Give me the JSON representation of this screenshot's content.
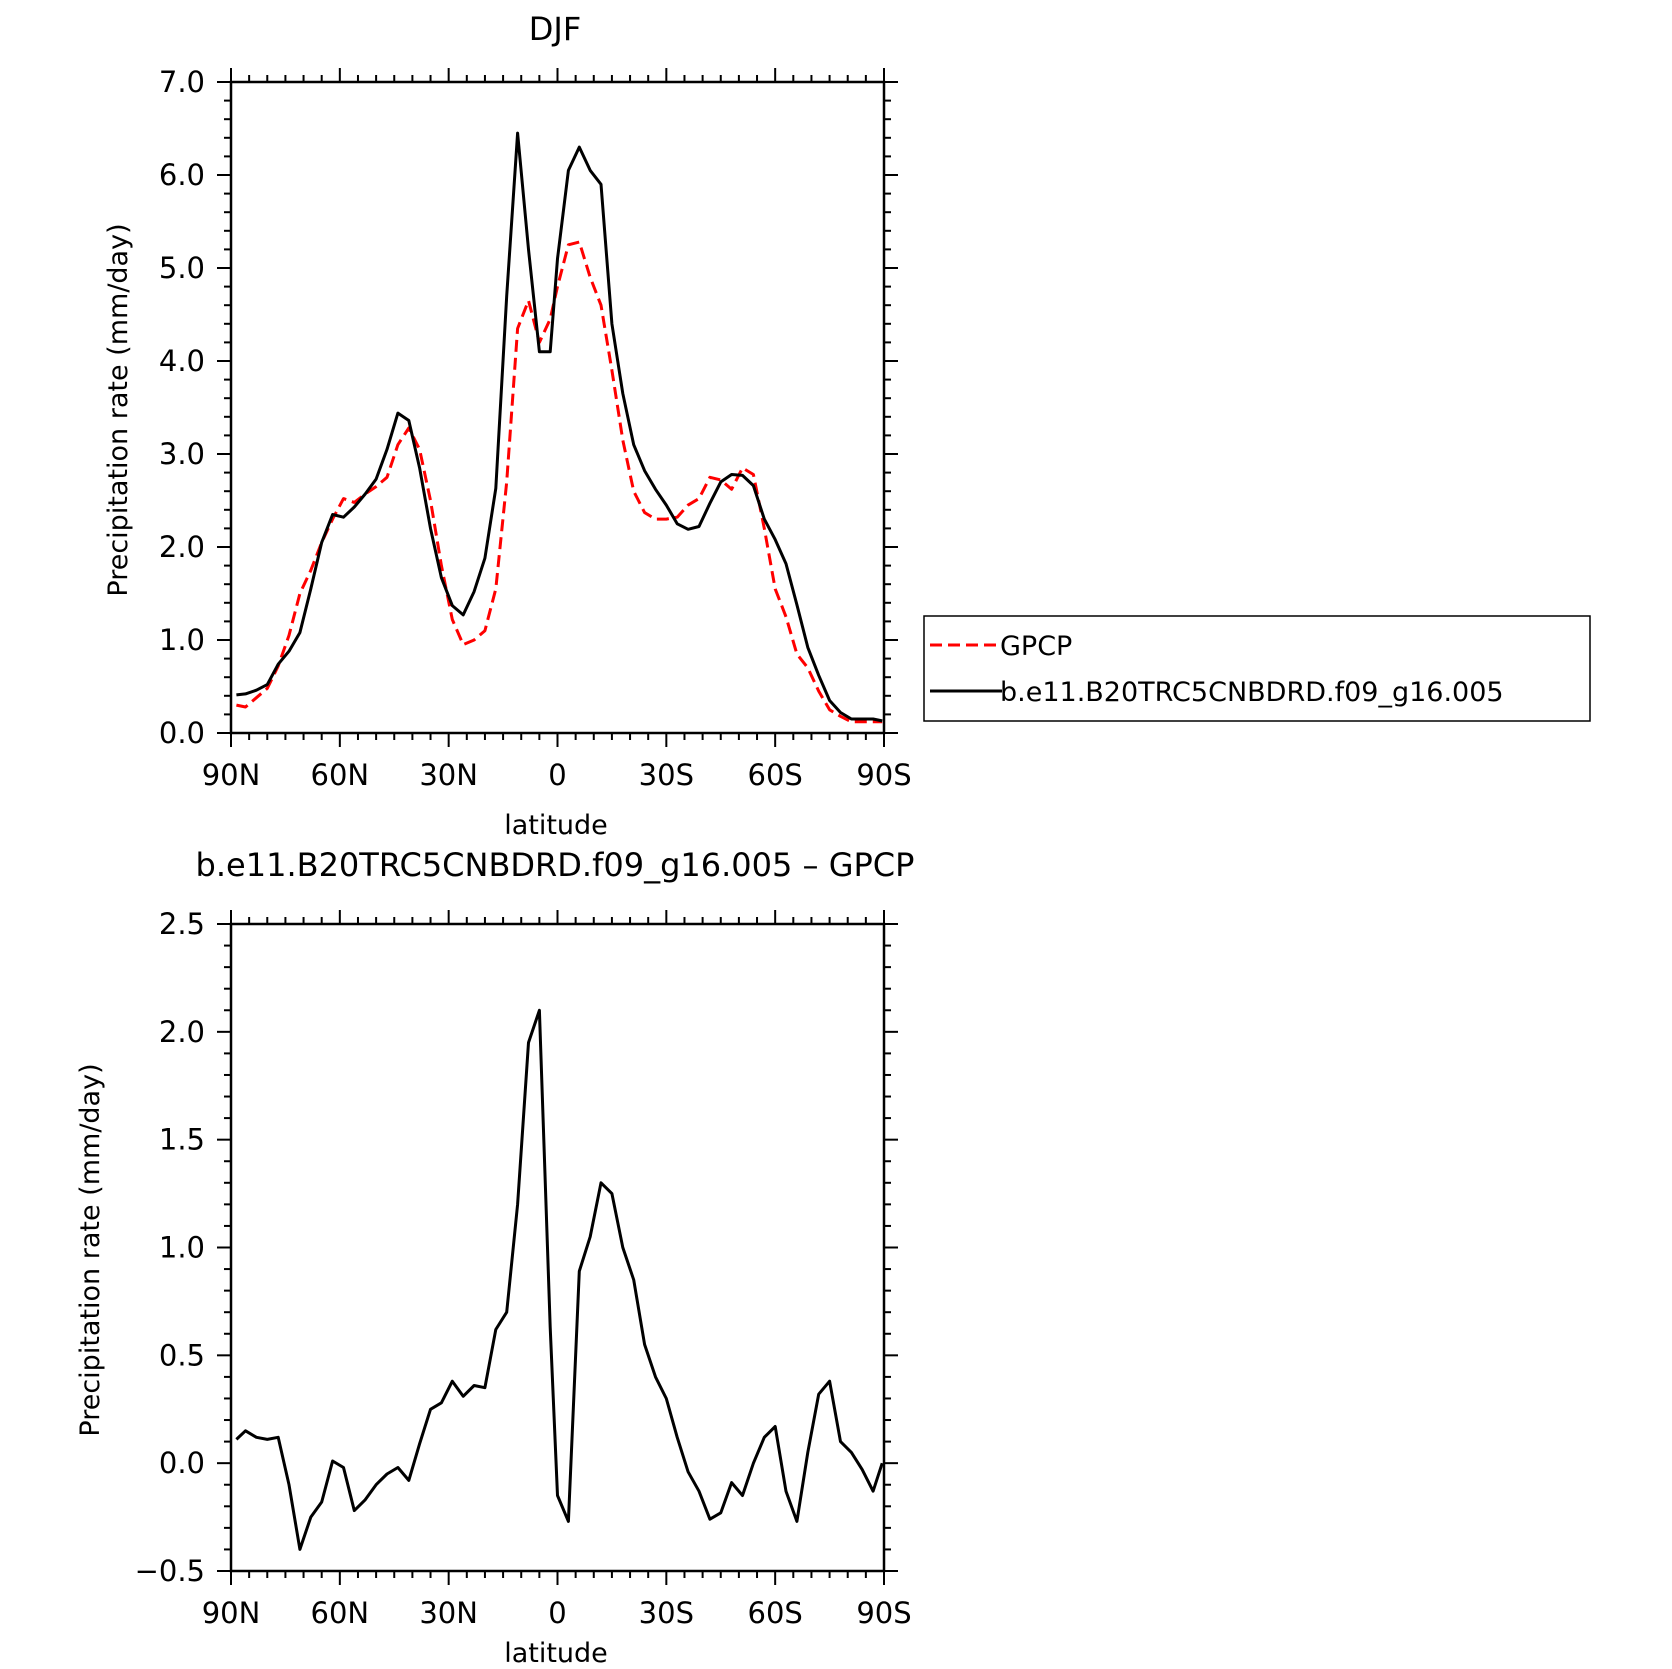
{
  "chart_data": [
    {
      "type": "line",
      "title": "DJF",
      "xlabel": "latitude",
      "ylabel": "Precipitation rate (mm/day)",
      "xlim": [
        90,
        -90
      ],
      "ylim": [
        0.0,
        7.0
      ],
      "x_ticks": [
        90,
        60,
        30,
        0,
        -30,
        -60,
        -90
      ],
      "x_tick_labels": [
        "90N",
        "60N",
        "30N",
        "0",
        "30S",
        "60S",
        "90S"
      ],
      "y_ticks": [
        0,
        1,
        2,
        3,
        4,
        5,
        6,
        7
      ],
      "y_tick_labels": [
        "0.0",
        "1.0",
        "2.0",
        "3.0",
        "4.0",
        "5.0",
        "6.0",
        "7.0"
      ],
      "grid": false,
      "legend_position": "right",
      "series": [
        {
          "name": "GPCP",
          "color": "#ff0000",
          "dash": true,
          "x": [
            88.5,
            86,
            83,
            80,
            77,
            74,
            71,
            68,
            65,
            62,
            59,
            56,
            53,
            50,
            47,
            44,
            41,
            38,
            35,
            32,
            29,
            26,
            23,
            20,
            17,
            14,
            11,
            8,
            5,
            2,
            0,
            -3,
            -6,
            -9,
            -12,
            -15,
            -18,
            -21,
            -24,
            -27,
            -30,
            -33,
            -36,
            -39,
            -42,
            -45,
            -48,
            -51,
            -54,
            -57,
            -60,
            -63,
            -66,
            -69,
            -72,
            -75,
            -78,
            -81,
            -84,
            -87,
            -89.5
          ],
          "y": [
            0.3,
            0.28,
            0.38,
            0.48,
            0.72,
            1.05,
            1.5,
            1.75,
            2.05,
            2.3,
            2.52,
            2.48,
            2.57,
            2.65,
            2.75,
            3.1,
            3.28,
            3.05,
            2.5,
            1.8,
            1.22,
            0.95,
            1.0,
            1.1,
            1.55,
            2.7,
            4.35,
            4.65,
            4.2,
            4.45,
            4.8,
            5.25,
            5.28,
            4.9,
            4.6,
            3.9,
            3.15,
            2.6,
            2.37,
            2.3,
            2.3,
            2.32,
            2.45,
            2.52,
            2.75,
            2.72,
            2.62,
            2.85,
            2.78,
            2.2,
            1.55,
            1.25,
            0.85,
            0.7,
            0.45,
            0.25,
            0.18,
            0.12,
            0.12,
            0.12,
            0.12
          ]
        },
        {
          "name": "b.e11.B20TRC5CNBDRD.f09_g16.005",
          "color": "#000000",
          "dash": false,
          "x": [
            88.5,
            86,
            83,
            80,
            77,
            74,
            71,
            68,
            65,
            62,
            59,
            56,
            53,
            50,
            47,
            44,
            41,
            38,
            35,
            32,
            29,
            26,
            23,
            20,
            17,
            14,
            11,
            8,
            5,
            2,
            0,
            -3,
            -6,
            -9,
            -12,
            -15,
            -18,
            -21,
            -24,
            -27,
            -30,
            -33,
            -36,
            -39,
            -42,
            -45,
            -48,
            -51,
            -54,
            -57,
            -60,
            -63,
            -66,
            -69,
            -72,
            -75,
            -78,
            -81,
            -84,
            -87,
            -89.5
          ],
          "y": [
            0.41,
            0.42,
            0.46,
            0.52,
            0.74,
            0.88,
            1.08,
            1.55,
            2.05,
            2.35,
            2.32,
            2.43,
            2.57,
            2.73,
            3.05,
            3.44,
            3.36,
            2.85,
            2.2,
            1.67,
            1.37,
            1.27,
            1.52,
            1.88,
            2.63,
            4.7,
            6.45,
            5.2,
            4.1,
            4.1,
            5.1,
            6.05,
            6.3,
            6.05,
            5.9,
            4.4,
            3.65,
            3.1,
            2.82,
            2.62,
            2.45,
            2.25,
            2.19,
            2.22,
            2.47,
            2.7,
            2.78,
            2.77,
            2.66,
            2.3,
            2.08,
            1.82,
            1.38,
            0.92,
            0.62,
            0.35,
            0.22,
            0.15,
            0.15,
            0.15,
            0.13
          ]
        }
      ]
    },
    {
      "type": "line",
      "title": "b.e11.B20TRC5CNBDRD.f09_g16.005 – GPCP",
      "xlabel": "latitude",
      "ylabel": "Precipitation rate (mm/day)",
      "xlim": [
        90,
        -90
      ],
      "ylim": [
        -0.5,
        2.5
      ],
      "x_ticks": [
        90,
        60,
        30,
        0,
        -30,
        -60,
        -90
      ],
      "x_tick_labels": [
        "90N",
        "60N",
        "30N",
        "0",
        "30S",
        "60S",
        "90S"
      ],
      "y_ticks": [
        -0.5,
        0,
        0.5,
        1,
        1.5,
        2,
        2.5
      ],
      "y_tick_labels": [
        "−0.5",
        "0.0",
        "0.5",
        "1.0",
        "1.5",
        "2.0",
        "2.5"
      ],
      "grid": false,
      "series": [
        {
          "color": "#000000",
          "dash": false,
          "x": [
            88.5,
            86,
            83,
            80,
            77,
            74,
            71,
            68,
            65,
            62,
            59,
            56,
            53,
            50,
            47,
            44,
            41,
            38,
            35,
            32,
            29,
            26,
            23,
            20,
            17,
            14,
            11,
            8,
            5,
            2,
            0,
            -3,
            -6,
            -9,
            -12,
            -15,
            -18,
            -21,
            -24,
            -27,
            -30,
            -33,
            -36,
            -39,
            -42,
            -45,
            -48,
            -51,
            -54,
            -57,
            -60,
            -63,
            -66,
            -69,
            -72,
            -75,
            -78,
            -81,
            -84,
            -87,
            -89.5
          ],
          "y": [
            0.11,
            0.15,
            0.12,
            0.11,
            0.12,
            -0.1,
            -0.4,
            -0.25,
            -0.18,
            0.01,
            -0.02,
            -0.22,
            -0.17,
            -0.1,
            -0.05,
            -0.02,
            -0.08,
            0.09,
            0.25,
            0.28,
            0.38,
            0.31,
            0.36,
            0.35,
            0.62,
            0.7,
            1.2,
            1.95,
            2.1,
            0.63,
            -0.15,
            -0.27,
            0.89,
            1.05,
            1.3,
            1.25,
            1.0,
            0.85,
            0.55,
            0.4,
            0.3,
            0.12,
            -0.04,
            -0.13,
            -0.26,
            -0.23,
            -0.09,
            -0.15,
            0.0,
            0.12,
            0.17,
            -0.13,
            -0.27,
            0.05,
            0.32,
            0.38,
            0.1,
            0.05,
            -0.03,
            -0.13,
            0.0
          ]
        }
      ]
    }
  ]
}
